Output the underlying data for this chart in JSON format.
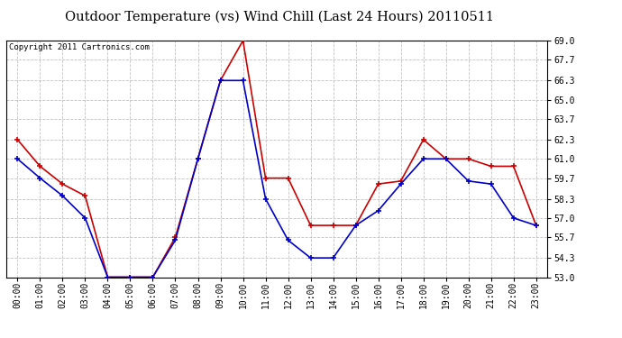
{
  "title": "Outdoor Temperature (vs) Wind Chill (Last 24 Hours) 20110511",
  "copyright_text": "Copyright 2011 Cartronics.com",
  "hours": [
    "00:00",
    "01:00",
    "02:00",
    "03:00",
    "04:00",
    "05:00",
    "06:00",
    "07:00",
    "08:00",
    "09:00",
    "10:00",
    "11:00",
    "12:00",
    "13:00",
    "14:00",
    "15:00",
    "16:00",
    "17:00",
    "18:00",
    "19:00",
    "20:00",
    "21:00",
    "22:00",
    "23:00"
  ],
  "temp_red": [
    62.3,
    60.5,
    59.3,
    58.5,
    53.0,
    53.0,
    53.0,
    55.7,
    61.0,
    66.3,
    69.0,
    59.7,
    59.7,
    56.5,
    56.5,
    56.5,
    59.3,
    59.5,
    62.3,
    61.0,
    61.0,
    60.5,
    60.5,
    56.5
  ],
  "temp_blue": [
    61.0,
    59.7,
    58.5,
    57.0,
    53.0,
    53.0,
    53.0,
    55.5,
    61.0,
    66.3,
    66.3,
    58.3,
    55.5,
    54.3,
    54.3,
    56.5,
    57.5,
    59.3,
    61.0,
    61.0,
    59.5,
    59.3,
    57.0,
    56.5
  ],
  "red_color": "#cc0000",
  "blue_color": "#0000cc",
  "ylim_min": 53.0,
  "ylim_max": 69.0,
  "yticks": [
    53.0,
    54.3,
    55.7,
    57.0,
    58.3,
    59.7,
    61.0,
    62.3,
    63.7,
    65.0,
    66.3,
    67.7,
    69.0
  ],
  "bg_color": "#ffffff",
  "grid_color": "#bbbbbb",
  "title_fontsize": 10.5,
  "copyright_fontsize": 6.5,
  "tick_fontsize": 7.0
}
